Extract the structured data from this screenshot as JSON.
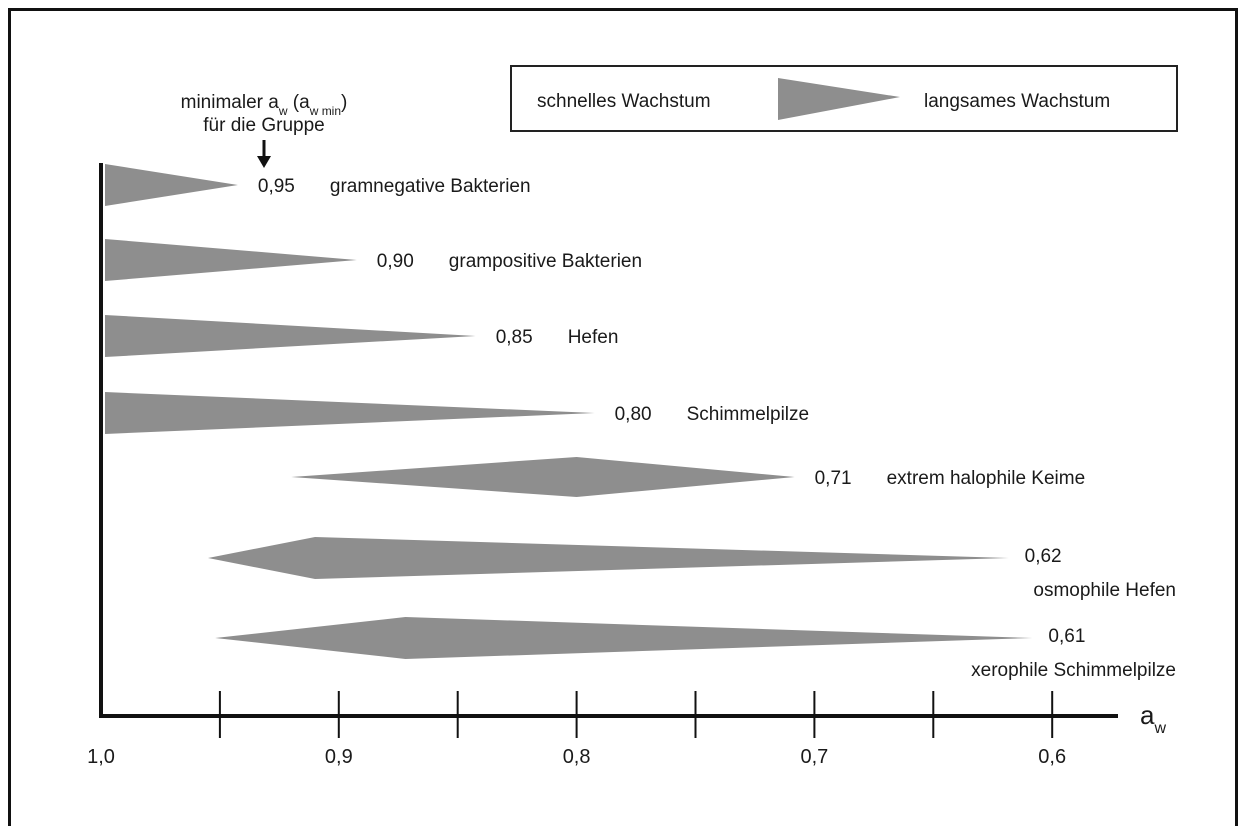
{
  "chart_data": {
    "type": "range-wedge",
    "x_axis_label_main": "a",
    "x_axis_label_sub": "w",
    "x_ticks": [
      {
        "value": 1.0,
        "label": "1,0"
      },
      {
        "value": 0.9,
        "label": "0,9"
      },
      {
        "value": 0.8,
        "label": "0,8"
      },
      {
        "value": 0.7,
        "label": "0,7"
      },
      {
        "value": 0.6,
        "label": "0,6"
      }
    ],
    "minor_ticks": [
      0.95,
      0.85,
      0.75,
      0.65
    ],
    "xlim": [
      1.0,
      0.585
    ],
    "annotation": {
      "line1_pre": "minimaler a",
      "line1_sub1": "w",
      "line1_mid": " (a",
      "line1_sub2": "w min",
      "line1_post": ")",
      "line2": "für die Gruppe"
    },
    "legend": {
      "left_label": "schnelles Wachstum",
      "right_label": "langsames Wachstum",
      "color": "#8e8e8e"
    },
    "series_color": "#8e8e8e",
    "groups": [
      {
        "name": "gramnegative Bakterien",
        "aw_min_label": "0,95",
        "shape": "tail",
        "start": 1.0,
        "end": 0.95
      },
      {
        "name": "grampositive Bakterien",
        "aw_min_label": "0,90",
        "shape": "tail",
        "start": 1.0,
        "end": 0.9
      },
      {
        "name": "Hefen",
        "aw_min_label": "0,85",
        "shape": "tail",
        "start": 1.0,
        "end": 0.85
      },
      {
        "name": "Schimmelpilze",
        "aw_min_label": "0,80",
        "shape": "tail",
        "start": 1.0,
        "end": 0.8
      },
      {
        "name": "extrem halophile Keime",
        "aw_min_label": "0,71",
        "shape": "diamond",
        "start": 0.92,
        "peak": 0.8,
        "end": 0.71
      },
      {
        "name": "osmophile Hefen",
        "aw_min_label": "0,62",
        "shape": "diamond",
        "start": 0.955,
        "peak": 0.91,
        "end": 0.62
      },
      {
        "name": "xerophile Schimmelpilze",
        "aw_min_label": "0,61",
        "shape": "diamond",
        "start": 0.952,
        "peak": 0.872,
        "end": 0.61
      }
    ]
  }
}
